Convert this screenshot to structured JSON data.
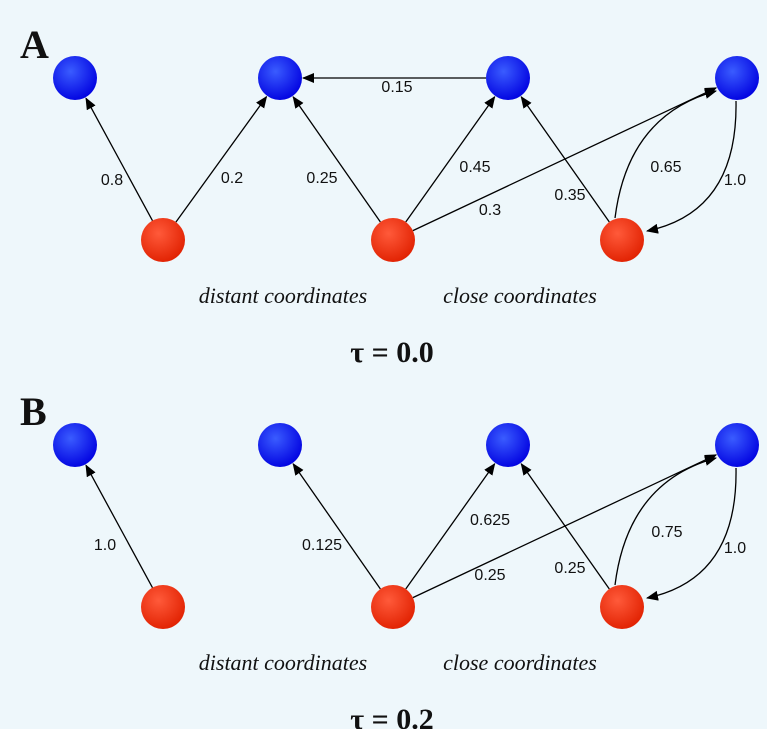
{
  "panels": [
    {
      "label": "A",
      "edge_labels": [
        "0.8",
        "0.2",
        "0.25",
        "0.45",
        "0.3",
        "0.15",
        "0.35",
        "0.65",
        "1.0"
      ],
      "captions": [
        "distant coordinates",
        "close coordinates"
      ],
      "tau": "τ = 0.0"
    },
    {
      "label": "B",
      "edge_labels": [
        "1.0",
        "0.125",
        "0.625",
        "0.25",
        "0.25",
        "0.75",
        "1.0"
      ],
      "captions": [
        "distant coordinates",
        "close coordinates"
      ],
      "tau": "τ = 0.2"
    }
  ]
}
